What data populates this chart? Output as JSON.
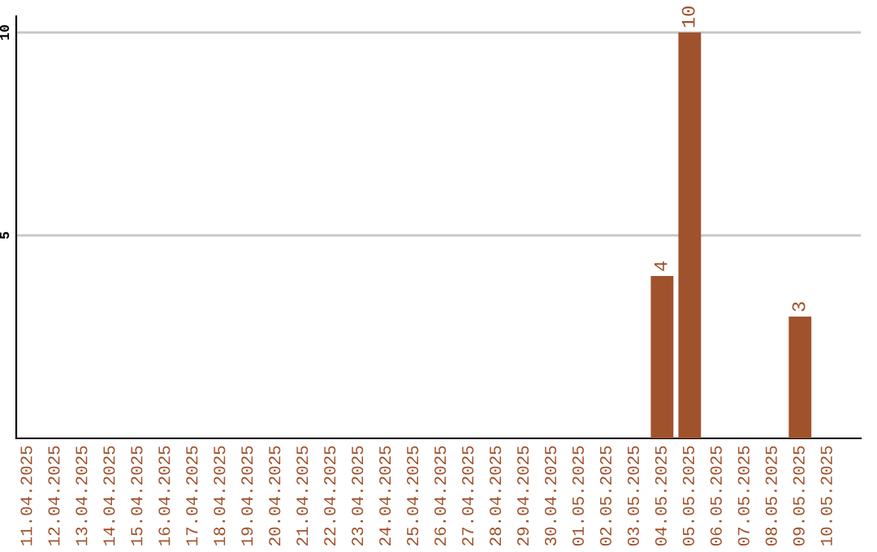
{
  "chart_data": {
    "type": "bar",
    "categories": [
      "11.04.2025",
      "12.04.2025",
      "13.04.2025",
      "14.04.2025",
      "15.04.2025",
      "16.04.2025",
      "17.04.2025",
      "18.04.2025",
      "19.04.2025",
      "20.04.2025",
      "21.04.2025",
      "22.04.2025",
      "23.04.2025",
      "24.04.2025",
      "25.04.2025",
      "26.04.2025",
      "27.04.2025",
      "28.04.2025",
      "29.04.2025",
      "30.04.2025",
      "01.05.2025",
      "02.05.2025",
      "03.05.2025",
      "04.05.2025",
      "05.05.2025",
      "06.05.2025",
      "07.05.2025",
      "08.05.2025",
      "09.05.2025",
      "10.05.2025"
    ],
    "values": [
      0,
      0,
      0,
      0,
      0,
      0,
      0,
      0,
      0,
      0,
      0,
      0,
      0,
      0,
      0,
      0,
      0,
      0,
      0,
      0,
      0,
      0,
      0,
      4,
      10,
      0,
      0,
      0,
      3,
      0
    ],
    "color": "#a0522d",
    "value_labels": [
      null,
      null,
      null,
      null,
      null,
      null,
      null,
      null,
      null,
      null,
      null,
      null,
      null,
      null,
      null,
      null,
      null,
      null,
      null,
      null,
      null,
      null,
      null,
      "4",
      "10",
      null,
      null,
      null,
      "3",
      null
    ],
    "ylim": [
      0,
      10.4
    ],
    "yticks": [
      5,
      10
    ],
    "grid": "y"
  }
}
